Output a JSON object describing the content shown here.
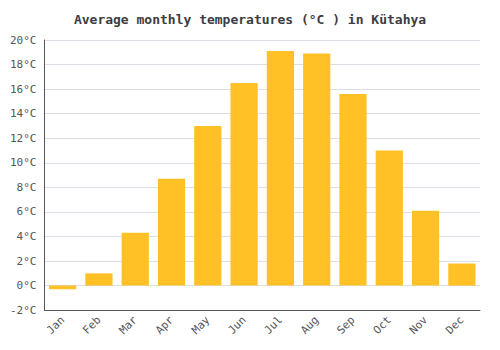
{
  "chart_data": {
    "type": "bar",
    "title": "Average monthly temperatures (°C ) in Kütahya",
    "categories": [
      "Jan",
      "Feb",
      "Mar",
      "Apr",
      "May",
      "Jun",
      "Jul",
      "Aug",
      "Sep",
      "Oct",
      "Nov",
      "Dec"
    ],
    "values": [
      -0.3,
      1.0,
      4.3,
      8.7,
      13.0,
      16.5,
      19.1,
      18.9,
      15.6,
      11.0,
      6.1,
      1.8
    ],
    "color": "#FFC125",
    "ylim": [
      -2,
      20
    ],
    "yticks": [
      {
        "value": -2,
        "label": "-2°C"
      },
      {
        "value": 0,
        "label": "0°C"
      },
      {
        "value": 2,
        "label": "2°C"
      },
      {
        "value": 4,
        "label": "4°C"
      },
      {
        "value": 6,
        "label": "6°C"
      },
      {
        "value": 8,
        "label": "8°C"
      },
      {
        "value": 10,
        "label": "10°C"
      },
      {
        "value": 12,
        "label": "12°C"
      },
      {
        "value": 14,
        "label": "14°C"
      },
      {
        "value": 16,
        "label": "16°C"
      },
      {
        "value": 18,
        "label": "18°C"
      },
      {
        "value": 20,
        "label": "20°C"
      }
    ],
    "grid": true
  }
}
